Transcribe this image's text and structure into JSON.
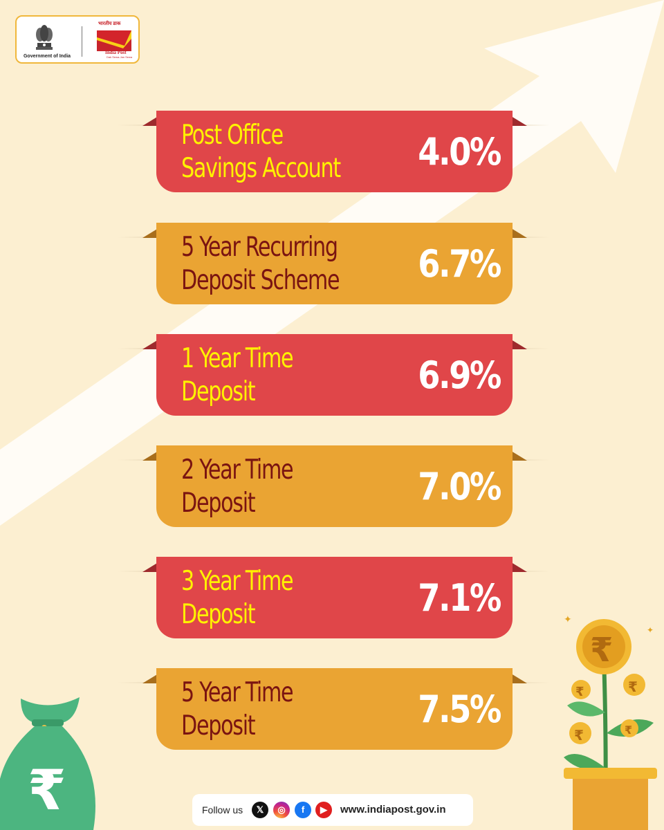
{
  "header": {
    "gov_label": "Government of India",
    "india_post_hindi": "भारतीय डाक",
    "india_post_name": "India Post",
    "india_post_tagline": "Dak Sewa-Jan Sewa"
  },
  "rates": [
    {
      "label": "Post Office\nSavings Account",
      "rate": "4.0%",
      "style": "red"
    },
    {
      "label": "5 Year Recurring\nDeposit Scheme",
      "rate": "6.7%",
      "style": "orange"
    },
    {
      "label": "1 Year Time\nDeposit",
      "rate": "6.9%",
      "style": "red"
    },
    {
      "label": "2 Year Time\nDeposit",
      "rate": "7.0%",
      "style": "orange"
    },
    {
      "label": "3 Year Time\nDeposit",
      "rate": "7.1%",
      "style": "red"
    },
    {
      "label": "5 Year Time\nDeposit",
      "rate": "7.5%",
      "style": "orange"
    }
  ],
  "footer": {
    "follow_label": "Follow us",
    "x_glyph": "𝕏",
    "ig_glyph": "◎",
    "fb_glyph": "f",
    "yt_glyph": "▶",
    "website": "www.indiapost.gov.in"
  },
  "decor": {
    "rupee_symbol": "₹"
  },
  "colors": {
    "background": "#fcefd1",
    "ribbon_red": "#e04649",
    "ribbon_orange": "#eaa433",
    "label_yellow": "#fff200",
    "label_maroon": "#7a1411",
    "rate_white": "#ffffff"
  }
}
